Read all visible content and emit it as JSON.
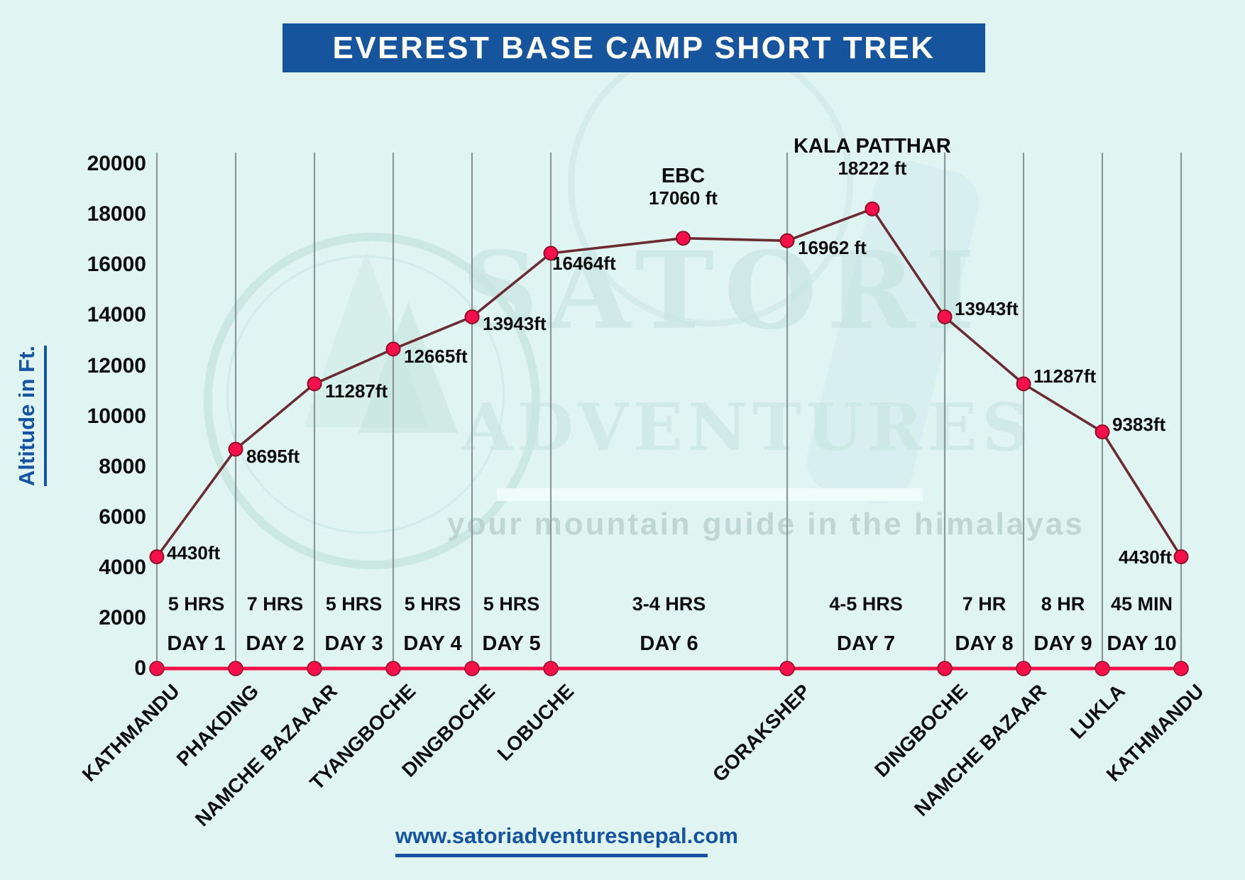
{
  "title": "EVEREST BASE CAMP SHORT TREK",
  "y_axis_label": "Altitude in Ft.",
  "footer_url": "www.satoriadventuresnepal.com",
  "watermark": {
    "brand_top": "SATORI",
    "brand_bottom": "ADVENTURES",
    "tagline": "your mountain guide in the himalayas"
  },
  "chart_data": {
    "type": "line",
    "title": "EVEREST BASE CAMP SHORT TREK",
    "ylabel": "Altitude in Ft.",
    "ylim": [
      0,
      20000
    ],
    "y_ticks": [
      0,
      2000,
      4000,
      6000,
      8000,
      10000,
      12000,
      14000,
      16000,
      18000,
      20000
    ],
    "grid": "vertical",
    "x_axis_locations": [
      {
        "name": "KATHMANDU",
        "unit": 0
      },
      {
        "name": "PHAKDING",
        "unit": 1
      },
      {
        "name": "NAMCHE BAZAAAR",
        "unit": 2
      },
      {
        "name": "TYANGBOCHE",
        "unit": 3
      },
      {
        "name": "DINGBOCHE",
        "unit": 4
      },
      {
        "name": "LOBUCHE",
        "unit": 5
      },
      {
        "name": "GORAKSHEP",
        "unit": 8
      },
      {
        "name": "DINGBOCHE",
        "unit": 10
      },
      {
        "name": "NAMCHE BAZAAR",
        "unit": 11
      },
      {
        "name": "LUKLA",
        "unit": 12
      },
      {
        "name": "KATHMANDU",
        "unit": 13
      }
    ],
    "points": [
      {
        "name": "KATHMANDU",
        "unit": 0,
        "altitude_ft": 4430,
        "label": "4430ft",
        "label_pos": "right"
      },
      {
        "name": "PHAKDING",
        "unit": 1,
        "altitude_ft": 8695,
        "label": "8695ft",
        "label_pos": "right-below"
      },
      {
        "name": "NAMCHE BAZAAAR",
        "unit": 2,
        "altitude_ft": 11287,
        "label": "11287ft",
        "label_pos": "right-below"
      },
      {
        "name": "TYANGBOCHE",
        "unit": 3,
        "altitude_ft": 12665,
        "label": "12665ft",
        "label_pos": "right-below"
      },
      {
        "name": "DINGBOCHE",
        "unit": 4,
        "altitude_ft": 13943,
        "label": "13943ft",
        "label_pos": "right-below"
      },
      {
        "name": "LOBUCHE",
        "unit": 5,
        "altitude_ft": 16464,
        "label": "16464ft",
        "label_pos": "below-right"
      },
      {
        "name": "EBC",
        "unit": 6.68,
        "altitude_ft": 17060,
        "label": "17060 ft",
        "title": "EBC",
        "label_pos": "above"
      },
      {
        "name": "GORAKSHEP",
        "unit": 8,
        "altitude_ft": 16962,
        "label": "16962 ft",
        "label_pos": "right-below"
      },
      {
        "name": "KALA PATTHAR",
        "unit": 9.08,
        "altitude_ft": 18222,
        "label": "18222 ft",
        "title": "KALA PATTHAR",
        "label_pos": "above"
      },
      {
        "name": "DINGBOCHE",
        "unit": 10,
        "altitude_ft": 13943,
        "label": "13943ft",
        "label_pos": "right-above"
      },
      {
        "name": "NAMCHE BAZAAR",
        "unit": 11,
        "altitude_ft": 11287,
        "label": "11287ft",
        "label_pos": "right-above"
      },
      {
        "name": "LUKLA",
        "unit": 12,
        "altitude_ft": 9383,
        "label": "9383ft",
        "label_pos": "right-above"
      },
      {
        "name": "KATHMANDU",
        "unit": 13,
        "altitude_ft": 4430,
        "label": "4430ft",
        "label_pos": "left"
      }
    ],
    "days": [
      {
        "day": "DAY 1",
        "duration": "5 HRS",
        "from_unit": 0,
        "to_unit": 1
      },
      {
        "day": "DAY 2",
        "duration": "7 HRS",
        "from_unit": 1,
        "to_unit": 2
      },
      {
        "day": "DAY 3",
        "duration": "5 HRS",
        "from_unit": 2,
        "to_unit": 3
      },
      {
        "day": "DAY 4",
        "duration": "5 HRS",
        "from_unit": 3,
        "to_unit": 4
      },
      {
        "day": "DAY 5",
        "duration": "5 HRS",
        "from_unit": 4,
        "to_unit": 5
      },
      {
        "day": "DAY 6",
        "duration": "3-4 HRS",
        "from_unit": 5,
        "to_unit": 8
      },
      {
        "day": "DAY 7",
        "duration": "4-5 HRS",
        "from_unit": 8,
        "to_unit": 10
      },
      {
        "day": "DAY 8",
        "duration": "7 HR",
        "from_unit": 10,
        "to_unit": 11
      },
      {
        "day": "DAY 9",
        "duration": "8 HR",
        "from_unit": 11,
        "to_unit": 12
      },
      {
        "day": "DAY 10",
        "duration": "45 MIN",
        "from_unit": 12,
        "to_unit": 13
      }
    ],
    "colors": {
      "background": "#e0f5f2",
      "title_bar": "#17549e",
      "accent_blue": "#1553a3",
      "line": "#6b2b33",
      "point_fill": "#f3104b",
      "point_stroke": "#8c0f28",
      "baseline": "#f3104b",
      "grid": "#8b9699",
      "text": "#0d0d0d"
    }
  }
}
